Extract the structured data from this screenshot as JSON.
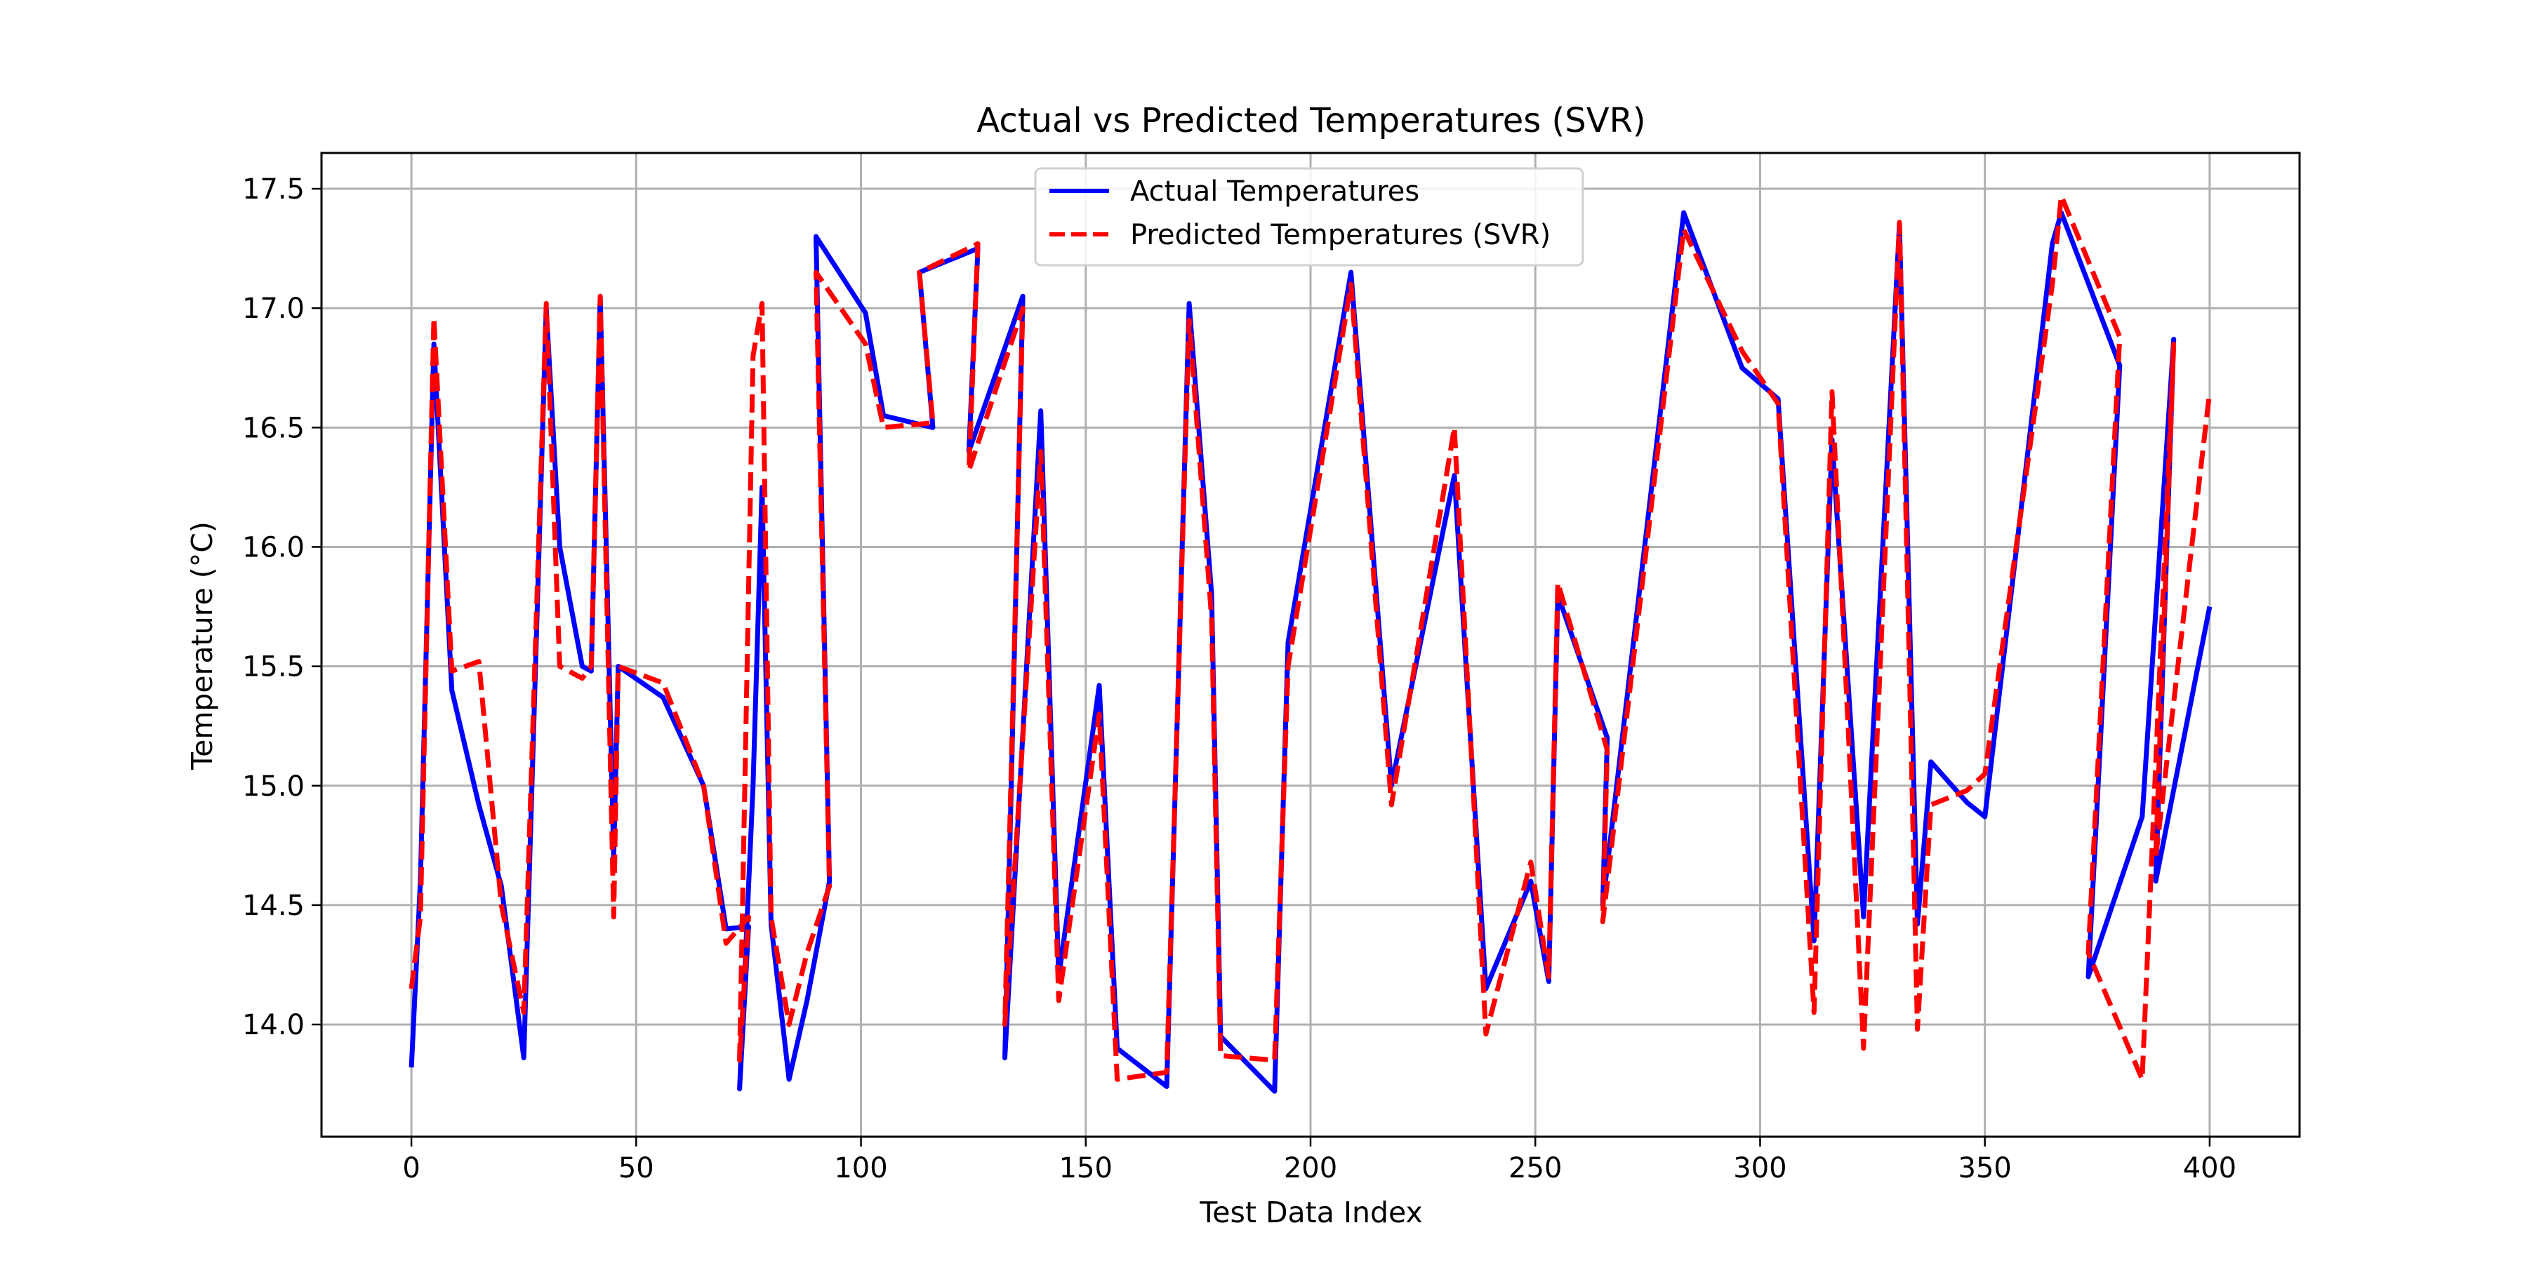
{
  "chart_data": {
    "type": "line",
    "title": "Actual vs Predicted Temperatures (SVR)",
    "xlabel": "Test Data Index",
    "ylabel": "Temperature (°C)",
    "xlim": [
      -20,
      420
    ],
    "ylim": [
      13.53,
      17.65
    ],
    "xticks": [
      0,
      50,
      100,
      150,
      200,
      250,
      300,
      350,
      400
    ],
    "yticks": [
      14.0,
      14.5,
      15.0,
      15.5,
      16.0,
      16.5,
      17.0,
      17.5
    ],
    "xtick_labels": [
      "0",
      "50",
      "100",
      "150",
      "200",
      "250",
      "300",
      "350",
      "400"
    ],
    "ytick_labels": [
      "14.0",
      "14.5",
      "15.0",
      "15.5",
      "16.0",
      "16.5",
      "17.0",
      "17.5"
    ],
    "grid": true,
    "legend_position": "upper-center",
    "series": [
      {
        "name": "Actual Temperatures",
        "color": "#0000ff",
        "style": "solid",
        "x": [
          0,
          2,
          5,
          9,
          15,
          20,
          25,
          30,
          33,
          38,
          40,
          42,
          45,
          46,
          56,
          65,
          70,
          75,
          73,
          76,
          78,
          80,
          84,
          88,
          93,
          90,
          101,
          105,
          116,
          113,
          126,
          124,
          136,
          132,
          140,
          144,
          153,
          157,
          168,
          173,
          178,
          180,
          192,
          195,
          209,
          218,
          232,
          239,
          249,
          253,
          255,
          266,
          265,
          283,
          296,
          304,
          312,
          316,
          323,
          331,
          335,
          338,
          346,
          350,
          365,
          367,
          380,
          373,
          385,
          392,
          388,
          400
        ],
        "y": [
          13.82,
          14.6,
          16.85,
          15.4,
          14.92,
          14.58,
          13.86,
          17.0,
          16.0,
          15.5,
          15.48,
          17.05,
          14.7,
          15.5,
          15.37,
          15.0,
          14.4,
          14.41,
          13.73,
          15.0,
          16.25,
          14.42,
          13.77,
          14.1,
          14.6,
          17.3,
          16.98,
          16.55,
          16.5,
          17.15,
          17.25,
          16.4,
          17.05,
          13.86,
          16.57,
          14.2,
          15.42,
          13.9,
          13.74,
          17.02,
          15.8,
          13.95,
          13.72,
          15.6,
          17.15,
          15.0,
          16.3,
          14.15,
          14.6,
          14.18,
          15.8,
          15.2,
          14.5,
          17.4,
          16.75,
          16.62,
          14.35,
          16.45,
          14.45,
          17.35,
          14.42,
          15.1,
          14.93,
          14.87,
          17.27,
          17.4,
          16.76,
          14.2,
          14.87,
          16.87,
          14.6,
          15.75
        ]
      },
      {
        "name": "Predicted Temperatures (SVR)",
        "color": "#ff0000",
        "style": "dashed",
        "x": [
          0,
          2,
          5,
          9,
          15,
          20,
          25,
          30,
          33,
          38,
          40,
          42,
          45,
          46,
          56,
          65,
          70,
          75,
          73,
          76,
          78,
          80,
          84,
          88,
          93,
          90,
          101,
          105,
          116,
          113,
          126,
          124,
          136,
          132,
          140,
          144,
          153,
          157,
          168,
          173,
          178,
          180,
          192,
          195,
          209,
          218,
          232,
          239,
          249,
          253,
          255,
          266,
          265,
          283,
          296,
          304,
          312,
          316,
          323,
          331,
          335,
          338,
          346,
          350,
          365,
          367,
          380,
          373,
          385,
          392,
          388,
          400
        ],
        "y": [
          14.15,
          14.45,
          16.96,
          15.48,
          15.52,
          14.5,
          14.05,
          17.02,
          15.5,
          15.45,
          15.5,
          17.05,
          14.45,
          15.5,
          15.43,
          15.0,
          14.34,
          14.45,
          13.85,
          16.8,
          17.02,
          14.45,
          14.0,
          14.3,
          14.58,
          17.15,
          16.85,
          16.5,
          16.52,
          17.15,
          17.27,
          16.32,
          17.0,
          14.0,
          16.4,
          14.1,
          15.3,
          13.77,
          13.8,
          16.95,
          15.7,
          13.87,
          13.85,
          15.5,
          17.1,
          14.92,
          16.5,
          13.96,
          14.68,
          14.2,
          15.85,
          15.15,
          14.43,
          17.33,
          16.82,
          16.6,
          14.05,
          16.65,
          13.9,
          17.36,
          13.98,
          14.92,
          14.98,
          15.05,
          17.1,
          17.47,
          16.88,
          14.3,
          13.77,
          16.85,
          14.7,
          16.65
        ]
      }
    ]
  }
}
